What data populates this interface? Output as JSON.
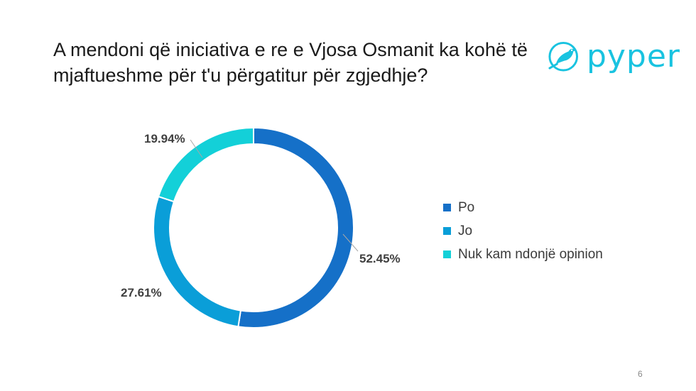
{
  "title": "A mendoni që iniciativa e re e Vjosa Osmanit ka kohë të mjaftueshme për t'u përgatitur për zgjedhje?",
  "logo": {
    "text": "pyper",
    "icon": "bird-icon",
    "color": "#19c3e0"
  },
  "page_number": "6",
  "chart_data": {
    "type": "pie",
    "donut": true,
    "categories": [
      "Po",
      "Jo",
      "Nuk kam ndonjë opinion"
    ],
    "values": [
      52.45,
      27.61,
      19.94
    ],
    "data_labels": [
      "52.45%",
      "27.61%",
      "19.94%"
    ],
    "colors": [
      "#1570c8",
      "#0a9ed8",
      "#13d0d8"
    ],
    "start": "top",
    "direction": "clockwise",
    "legend_position": "right"
  }
}
